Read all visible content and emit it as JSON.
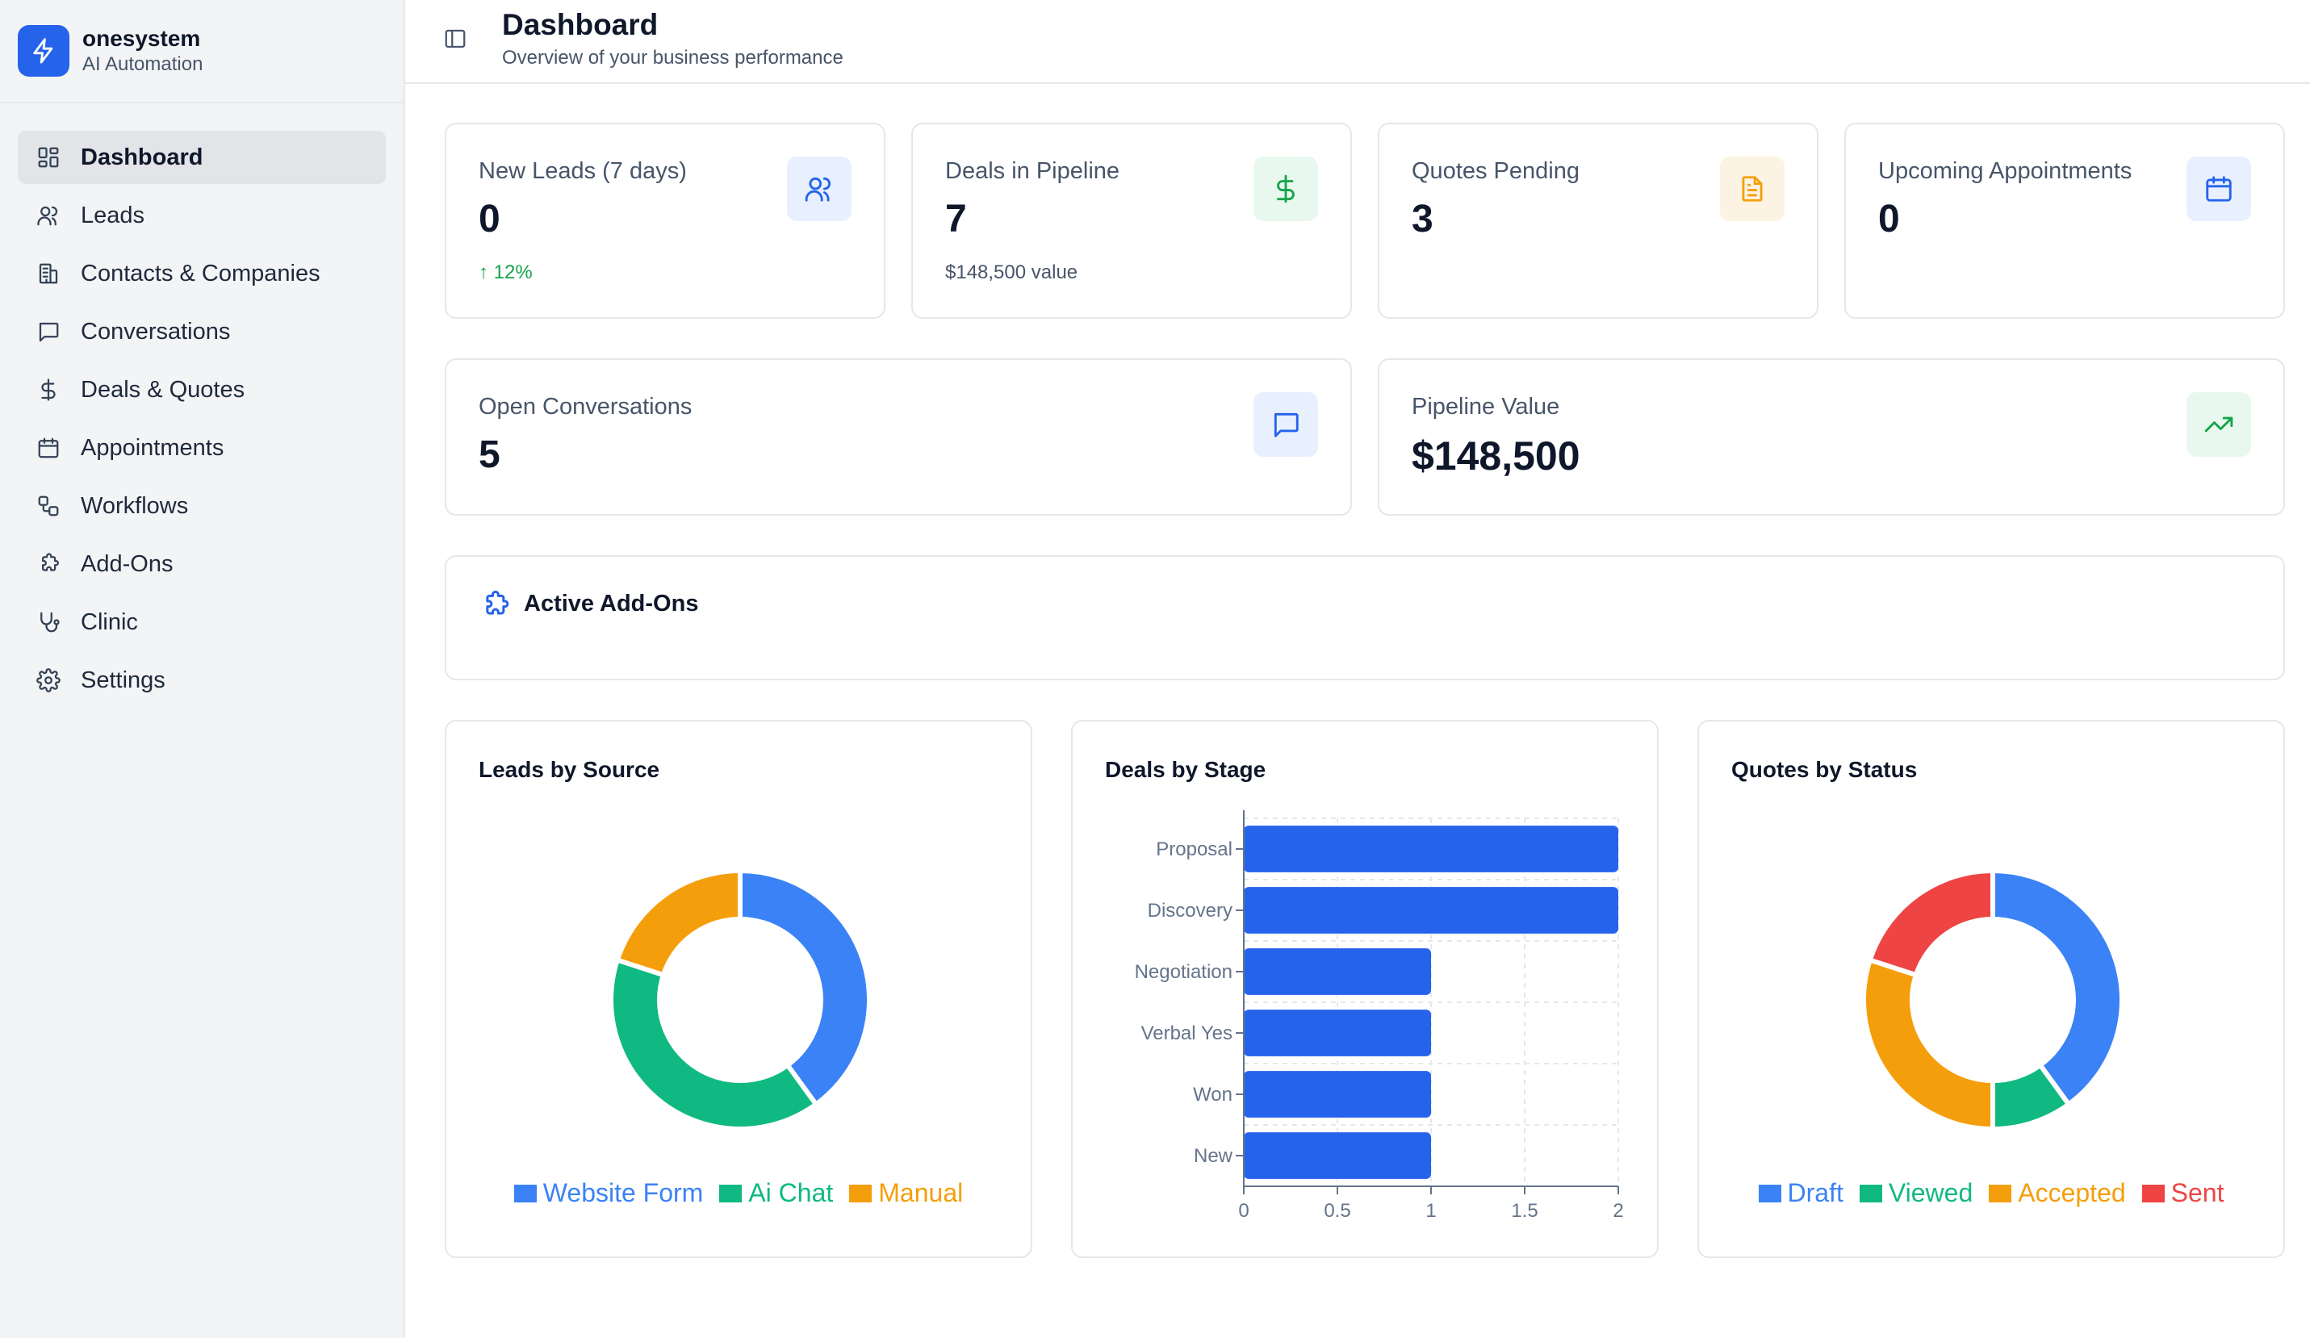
{
  "brand": {
    "name": "onesystem",
    "subtitle": "AI Automation"
  },
  "nav": [
    {
      "label": "Dashboard",
      "icon": "dashboard-icon",
      "active": true
    },
    {
      "label": "Leads",
      "icon": "users-icon"
    },
    {
      "label": "Contacts & Companies",
      "icon": "building-icon"
    },
    {
      "label": "Conversations",
      "icon": "message-icon"
    },
    {
      "label": "Deals & Quotes",
      "icon": "dollar-icon"
    },
    {
      "label": "Appointments",
      "icon": "calendar-icon"
    },
    {
      "label": "Workflows",
      "icon": "workflow-icon"
    },
    {
      "label": "Add-Ons",
      "icon": "puzzle-icon"
    },
    {
      "label": "Clinic",
      "icon": "stethoscope-icon"
    },
    {
      "label": "Settings",
      "icon": "gear-icon"
    }
  ],
  "header": {
    "title": "Dashboard",
    "subtitle": "Overview of your business performance"
  },
  "stats": {
    "new_leads": {
      "label": "New Leads (7 days)",
      "value": "0",
      "note": "↑ 12%",
      "icon": "users-icon",
      "color": "#2563eb",
      "bg": "#e8f0fe"
    },
    "deals": {
      "label": "Deals in Pipeline",
      "value": "7",
      "note": "$148,500 value",
      "icon": "dollar-icon",
      "color": "#16a34a",
      "bg": "#e9f8ef"
    },
    "quotes": {
      "label": "Quotes Pending",
      "value": "3",
      "icon": "document-icon",
      "color": "#f59e0b",
      "bg": "#fdf3e2"
    },
    "appointments": {
      "label": "Upcoming Appointments",
      "value": "0",
      "icon": "calendar-icon",
      "color": "#2563eb",
      "bg": "#e8f0fe"
    },
    "conversations": {
      "label": "Open Conversations",
      "value": "5",
      "icon": "message-icon",
      "color": "#2563eb",
      "bg": "#e8f0fe"
    },
    "pipeline_value": {
      "label": "Pipeline Value",
      "value": "$148,500",
      "icon": "trending-up-icon",
      "color": "#16a34a",
      "bg": "#e9f8ef"
    }
  },
  "addons": {
    "title": "Active Add-Ons"
  },
  "chart_data": [
    {
      "type": "pie",
      "title": "Leads by Source",
      "categories": [
        "Website Form",
        "Ai Chat",
        "Manual"
      ],
      "values": [
        2,
        2,
        1
      ],
      "colors": [
        "#3b82f6",
        "#10b981",
        "#f59e0b"
      ]
    },
    {
      "type": "bar",
      "orientation": "horizontal",
      "title": "Deals by Stage",
      "categories": [
        "Proposal",
        "Discovery",
        "Negotiation",
        "Verbal Yes",
        "Won",
        "New"
      ],
      "values": [
        2,
        2,
        1,
        1,
        1,
        1
      ],
      "xlim": [
        0,
        2
      ],
      "xticks": [
        "0",
        "0.5",
        "1",
        "1.5",
        "2"
      ],
      "color": "#2563eb",
      "grid": true
    },
    {
      "type": "pie",
      "title": "Quotes by Status",
      "categories": [
        "Draft",
        "Viewed",
        "Accepted",
        "Sent"
      ],
      "values": [
        4,
        1,
        3,
        2
      ],
      "colors": [
        "#3b82f6",
        "#10b981",
        "#f59e0b",
        "#ef4444"
      ]
    }
  ]
}
